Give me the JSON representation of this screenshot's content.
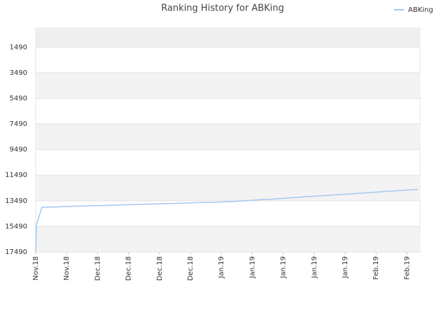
{
  "chart_data": {
    "type": "line",
    "title": "Ranking History for ABKing",
    "x": [
      0,
      0.02,
      0.2,
      0.61,
      1.33,
      2.13,
      2.92,
      3.71,
      4.46,
      5.18,
      5.97,
      6.54,
      7.22,
      7.9,
      8.57,
      9.25,
      9.93,
      10.61,
      11.29,
      11.97,
      12.35
    ],
    "series": [
      {
        "name": "ABKing",
        "color": "#a4c8ee",
        "values": [
          17490,
          15400,
          14000,
          13970,
          13900,
          13860,
          13800,
          13750,
          13700,
          13640,
          13590,
          13530,
          13420,
          13320,
          13200,
          13100,
          12990,
          12880,
          12770,
          12660,
          12600
        ]
      }
    ],
    "xlim": [
      0,
      12.42
    ],
    "xticks": [
      {
        "value": 0,
        "label": "Nov.18"
      },
      {
        "value": 1,
        "label": "Nov.18"
      },
      {
        "value": 2,
        "label": "Dec.18"
      },
      {
        "value": 3,
        "label": "Dec.18"
      },
      {
        "value": 4,
        "label": "Dec.18"
      },
      {
        "value": 5,
        "label": "Dec.18"
      },
      {
        "value": 6,
        "label": "Jan.19"
      },
      {
        "value": 7,
        "label": "Jan.19"
      },
      {
        "value": 8,
        "label": "Jan.19"
      },
      {
        "value": 9,
        "label": "Jan.19"
      },
      {
        "value": 10,
        "label": "Jan.19"
      },
      {
        "value": 11,
        "label": "Feb.19"
      },
      {
        "value": 12,
        "label": "Feb.19"
      }
    ],
    "ylim": [
      17490,
      0
    ],
    "yticks": [
      1490,
      3490,
      5490,
      7490,
      9490,
      11490,
      13490,
      15490,
      17490
    ],
    "grid": true,
    "legend": "top-right"
  }
}
